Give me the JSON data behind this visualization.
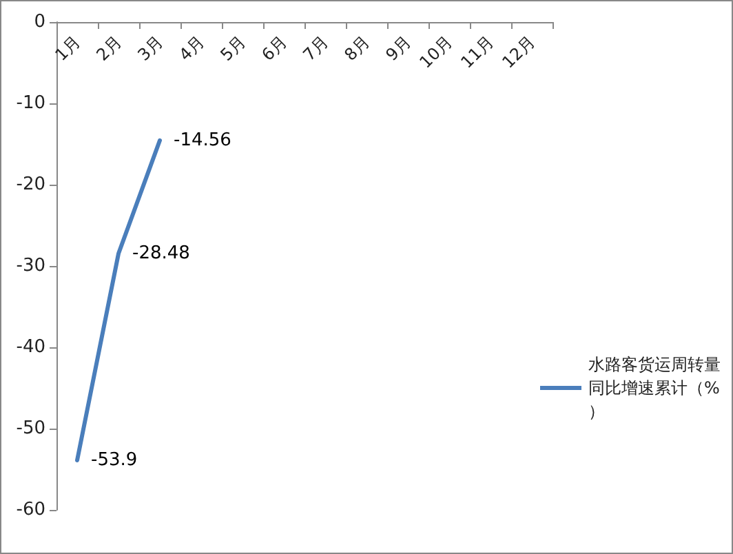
{
  "chart_data": {
    "type": "line",
    "categories": [
      "1月",
      "2月",
      "3月",
      "4月",
      "5月",
      "6月",
      "7月",
      "8月",
      "9月",
      "10月",
      "11月",
      "12月"
    ],
    "series": [
      {
        "name": "水路客货运周转量同比增速累计（%）",
        "color": "#4a7ebb",
        "values": [
          -53.9,
          -28.48,
          -14.56,
          null,
          null,
          null,
          null,
          null,
          null,
          null,
          null,
          null
        ]
      }
    ],
    "ylim": [
      -60,
      0
    ],
    "yticks": [
      -60,
      -50,
      -40,
      -30,
      -20,
      -10,
      0
    ],
    "grid": false,
    "legend": "right",
    "marker": "none",
    "line_style": "solid",
    "data_labels": true
  }
}
